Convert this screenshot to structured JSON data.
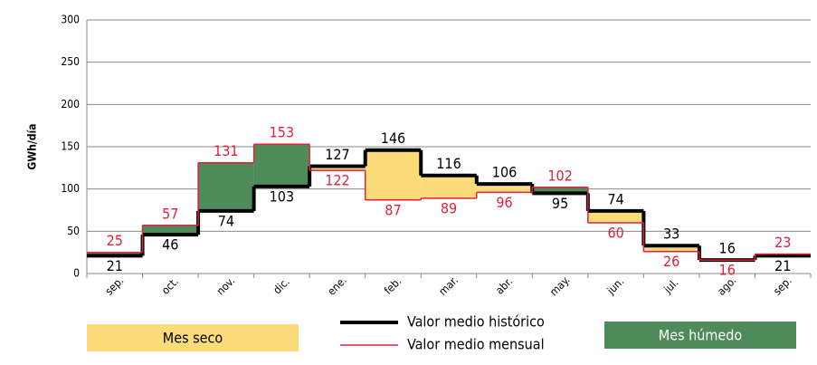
{
  "chart_data": {
    "type": "step",
    "y_label": "GWh/día",
    "categories": [
      "sep.",
      "oct.",
      "nov.",
      "dic.",
      "ene.",
      "feb.",
      "mar.",
      "abr.",
      "may.",
      "jun.",
      "jul.",
      "ago.",
      "sep."
    ],
    "series": [
      {
        "name": "Valor medio histórico",
        "color": "#000000",
        "values": [
          21,
          46,
          74,
          103,
          127,
          146,
          116,
          106,
          95,
          74,
          33,
          16,
          21
        ]
      },
      {
        "name": "Valor medio mensual",
        "color": "#e0223a",
        "values": [
          25,
          57,
          131,
          153,
          122,
          87,
          89,
          96,
          102,
          60,
          26,
          16,
          23
        ]
      }
    ],
    "dry_label": "Mes seco",
    "dry_color": "#fbdb7a",
    "wet_label": "Mes húmedo",
    "wet_color": "#4f8a5b",
    "ylim": [
      0,
      300
    ],
    "yticks": [
      0,
      50,
      100,
      150,
      200,
      250,
      300
    ],
    "grid": true
  }
}
